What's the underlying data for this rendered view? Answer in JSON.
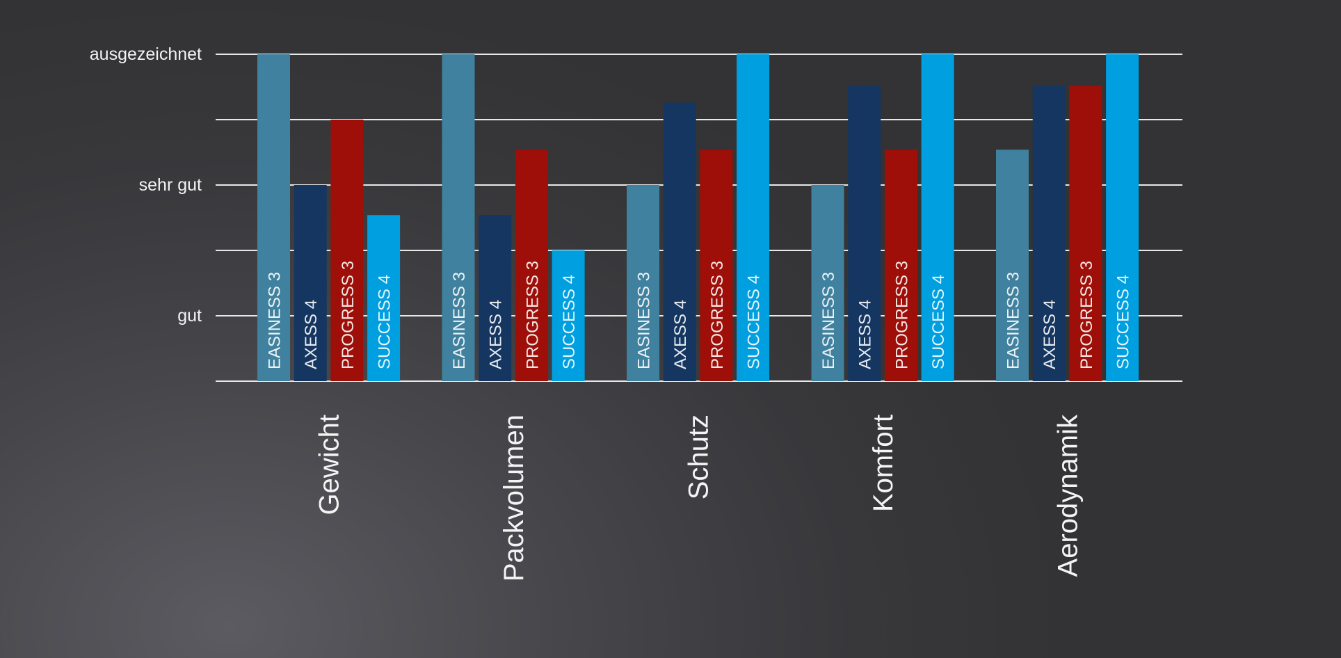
{
  "chart_data": {
    "type": "bar",
    "title": "",
    "xlabel": "",
    "ylabel": "",
    "categories": [
      "Gewicht",
      "Packvolumen",
      "Schutz",
      "Komfort",
      "Aerodynamik"
    ],
    "y_ticks": [
      {
        "value": 1,
        "label": "gut"
      },
      {
        "value": 1.5,
        "label": ""
      },
      {
        "value": 2,
        "label": "sehr gut"
      },
      {
        "value": 2.5,
        "label": ""
      },
      {
        "value": 3,
        "label": "ausgezeichnet"
      }
    ],
    "ylim": [
      0.5,
      3
    ],
    "grid": true,
    "legend": "none",
    "series": [
      {
        "name": "EASINESS 3",
        "color": "#3f819f",
        "values": [
          3.0,
          3.0,
          2.0,
          2.0,
          2.27
        ]
      },
      {
        "name": "AXESS 4",
        "color": "#143660",
        "values": [
          2.0,
          1.77,
          2.63,
          2.76,
          2.76
        ]
      },
      {
        "name": "PROGRESS 3",
        "color": "#9d0f08",
        "values": [
          2.5,
          2.27,
          2.27,
          2.27,
          2.76
        ]
      },
      {
        "name": "SUCCESS 4",
        "color": "#009fe0",
        "values": [
          1.77,
          1.5,
          3.0,
          3.0,
          3.0
        ]
      }
    ]
  }
}
